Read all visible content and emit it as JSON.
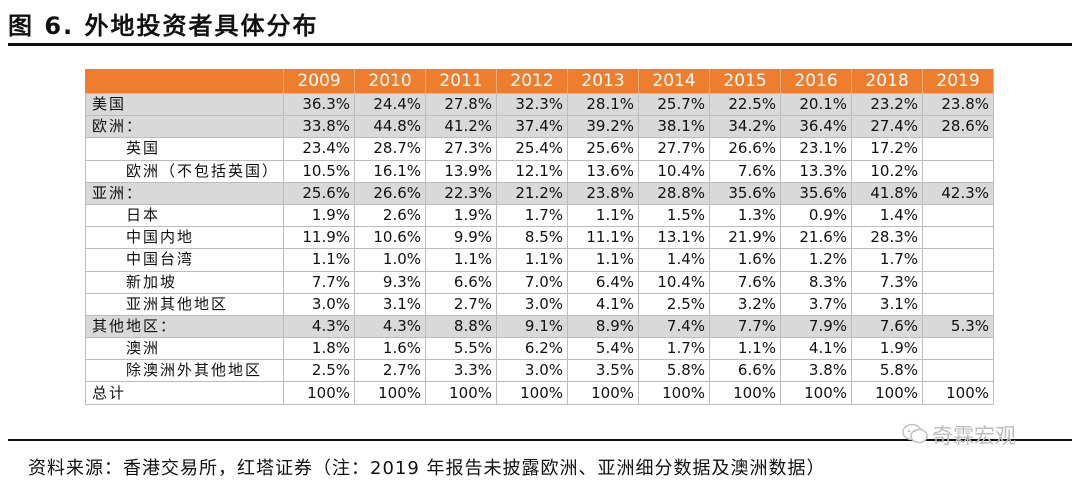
{
  "figure": {
    "title": "图 6. 外地投资者具体分布",
    "source": "资料来源：香港交易所，红塔证券（注：2019 年报告未披露欧洲、亚洲细分数据及澳洲数据）",
    "watermark": "奇霖宏观"
  },
  "table": {
    "corner": "",
    "years": [
      "2009",
      "2010",
      "2011",
      "2012",
      "2013",
      "2014",
      "2015",
      "2016",
      "2018",
      "2019"
    ],
    "rows": [
      {
        "label": "美国",
        "group": true,
        "sub": false,
        "values": [
          "36.3%",
          "24.4%",
          "27.8%",
          "32.3%",
          "28.1%",
          "25.7%",
          "22.5%",
          "20.1%",
          "23.2%",
          "23.8%"
        ]
      },
      {
        "label": "欧洲：",
        "group": true,
        "sub": false,
        "values": [
          "33.8%",
          "44.8%",
          "41.2%",
          "37.4%",
          "39.2%",
          "38.1%",
          "34.2%",
          "36.4%",
          "27.4%",
          "28.6%"
        ]
      },
      {
        "label": "英国",
        "group": false,
        "sub": true,
        "values": [
          "23.4%",
          "28.7%",
          "27.3%",
          "25.4%",
          "25.6%",
          "27.7%",
          "26.6%",
          "23.1%",
          "17.2%",
          ""
        ]
      },
      {
        "label": "欧洲（不包括英国）",
        "group": false,
        "sub": true,
        "values": [
          "10.5%",
          "16.1%",
          "13.9%",
          "12.1%",
          "13.6%",
          "10.4%",
          "7.6%",
          "13.3%",
          "10.2%",
          ""
        ]
      },
      {
        "label": "亚洲：",
        "group": true,
        "sub": false,
        "values": [
          "25.6%",
          "26.6%",
          "22.3%",
          "21.2%",
          "23.8%",
          "28.8%",
          "35.6%",
          "35.6%",
          "41.8%",
          "42.3%"
        ]
      },
      {
        "label": "日本",
        "group": false,
        "sub": true,
        "values": [
          "1.9%",
          "2.6%",
          "1.9%",
          "1.7%",
          "1.1%",
          "1.5%",
          "1.3%",
          "0.9%",
          "1.4%",
          ""
        ]
      },
      {
        "label": "中国内地",
        "group": false,
        "sub": true,
        "values": [
          "11.9%",
          "10.6%",
          "9.9%",
          "8.5%",
          "11.1%",
          "13.1%",
          "21.9%",
          "21.6%",
          "28.3%",
          ""
        ]
      },
      {
        "label": "中国台湾",
        "group": false,
        "sub": true,
        "values": [
          "1.1%",
          "1.0%",
          "1.1%",
          "1.1%",
          "1.1%",
          "1.4%",
          "1.6%",
          "1.2%",
          "1.7%",
          ""
        ]
      },
      {
        "label": "新加坡",
        "group": false,
        "sub": true,
        "values": [
          "7.7%",
          "9.3%",
          "6.6%",
          "7.0%",
          "6.4%",
          "10.4%",
          "7.6%",
          "8.3%",
          "7.3%",
          ""
        ]
      },
      {
        "label": "亚洲其他地区",
        "group": false,
        "sub": true,
        "values": [
          "3.0%",
          "3.1%",
          "2.7%",
          "3.0%",
          "4.1%",
          "2.5%",
          "3.2%",
          "3.7%",
          "3.1%",
          ""
        ]
      },
      {
        "label": "其他地区：",
        "group": true,
        "sub": false,
        "values": [
          "4.3%",
          "4.3%",
          "8.8%",
          "9.1%",
          "8.9%",
          "7.4%",
          "7.7%",
          "7.9%",
          "7.6%",
          "5.3%"
        ]
      },
      {
        "label": "澳洲",
        "group": false,
        "sub": true,
        "values": [
          "1.8%",
          "1.6%",
          "5.5%",
          "6.2%",
          "5.4%",
          "1.7%",
          "1.1%",
          "4.1%",
          "1.9%",
          ""
        ]
      },
      {
        "label": "除澳洲外其他地区",
        "group": false,
        "sub": true,
        "values": [
          "2.5%",
          "2.7%",
          "3.3%",
          "3.0%",
          "3.5%",
          "5.8%",
          "6.6%",
          "3.8%",
          "5.8%",
          ""
        ]
      },
      {
        "label": "总计",
        "group": false,
        "sub": false,
        "values": [
          "100%",
          "100%",
          "100%",
          "100%",
          "100%",
          "100%",
          "100%",
          "100%",
          "100%",
          "100%"
        ]
      }
    ]
  },
  "colors": {
    "header_bg": "#ee7d2e",
    "header_text": "#ffffff",
    "group_row_bg": "#d9d9d9"
  }
}
